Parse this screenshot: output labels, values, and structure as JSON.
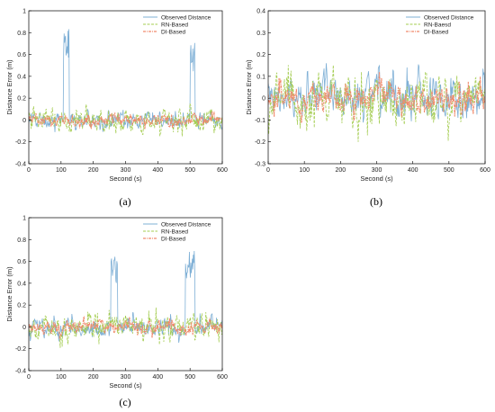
{
  "colors": {
    "observed": "#7fb0d6",
    "rn": "#a3cc4f",
    "di": "#f08a6c"
  },
  "chart_data": [
    {
      "type": "line",
      "panel_label": "(a)",
      "xlabel": "Second (s)",
      "ylabel": "Distance Error (m)",
      "xlim": [
        0,
        600
      ],
      "ylim": [
        -0.4,
        1.0
      ],
      "xticks": [
        0,
        100,
        200,
        300,
        400,
        500,
        600
      ],
      "yticks": [
        -0.4,
        -0.2,
        0,
        0.2,
        0.4,
        0.6,
        0.8,
        1.0
      ],
      "ytick_labels": [
        "-0.4",
        "-0.2",
        "0",
        "0.2",
        "0.4",
        "0.6",
        "0.8",
        "1"
      ],
      "legend_position": "top-right",
      "series": [
        {
          "name": "Observed Distance",
          "style": "solid",
          "amp": 0.05,
          "floor": -0.19,
          "ceil": 0.85,
          "seed": 11,
          "bursts": [
            {
              "x": [
                108,
                125
              ],
              "level": 0.7
            },
            {
              "x": [
                500,
                515
              ],
              "level": 0.58
            }
          ]
        },
        {
          "name": "RN-Based",
          "style": "dashed",
          "amp": 0.07,
          "floor": -0.21,
          "ceil": 0.2,
          "seed": 23,
          "bursts": []
        },
        {
          "name": "DI-Based",
          "style": "dashdot",
          "amp": 0.035,
          "floor": -0.1,
          "ceil": 0.12,
          "seed": 37,
          "bursts": []
        }
      ]
    },
    {
      "type": "line",
      "panel_label": "(b)",
      "xlabel": "Second (s)",
      "ylabel": "Distance Error (m)",
      "xlim": [
        0,
        600
      ],
      "ylim": [
        -0.3,
        0.4
      ],
      "xticks": [
        0,
        100,
        200,
        300,
        400,
        500,
        600
      ],
      "yticks": [
        -0.3,
        -0.2,
        -0.1,
        0,
        0.1,
        0.2,
        0.3,
        0.4
      ],
      "ytick_labels": [
        "-0.3",
        "-0.2",
        "-0.1",
        "0",
        "0.1",
        "0.2",
        "0.3",
        "0.4"
      ],
      "legend_position": "top-right",
      "series": [
        {
          "name": "Observed Distance",
          "style": "solid",
          "amp": 0.07,
          "floor": -0.2,
          "ceil": 0.17,
          "seed": 41,
          "bursts": []
        },
        {
          "name": "RN-Baesd",
          "style": "dashed",
          "amp": 0.075,
          "floor": -0.2,
          "ceil": 0.18,
          "seed": 53,
          "bursts": []
        },
        {
          "name": "DI-Based",
          "style": "dashdot",
          "amp": 0.04,
          "floor": -0.12,
          "ceil": 0.13,
          "seed": 67,
          "bursts": []
        }
      ]
    },
    {
      "type": "line",
      "panel_label": "(c)",
      "xlabel": "Second (s)",
      "ylabel": "Distance Error (m)",
      "xlim": [
        0,
        600
      ],
      "ylim": [
        -0.4,
        1.0
      ],
      "xticks": [
        0,
        100,
        200,
        300,
        400,
        500,
        600
      ],
      "yticks": [
        -0.4,
        -0.2,
        0,
        0.2,
        0.4,
        0.6,
        0.8,
        1.0
      ],
      "ytick_labels": [
        "-0.4",
        "-0.2",
        "0",
        "0.2",
        "0.4",
        "0.6",
        "0.8",
        "1"
      ],
      "legend_position": "top-right",
      "series": [
        {
          "name": "Observed Distance",
          "style": "solid",
          "amp": 0.055,
          "floor": -0.2,
          "ceil": 0.74,
          "seed": 71,
          "bursts": [
            {
              "x": [
                255,
                275
              ],
              "level": 0.52
            },
            {
              "x": [
                485,
                515
              ],
              "level": 0.58
            }
          ]
        },
        {
          "name": "RN-Based",
          "style": "dashed",
          "amp": 0.075,
          "floor": -0.31,
          "ceil": 0.2,
          "seed": 83,
          "bursts": []
        },
        {
          "name": "DI-Based",
          "style": "dashdot",
          "amp": 0.04,
          "floor": -0.12,
          "ceil": 0.12,
          "seed": 97,
          "bursts": []
        }
      ]
    }
  ]
}
